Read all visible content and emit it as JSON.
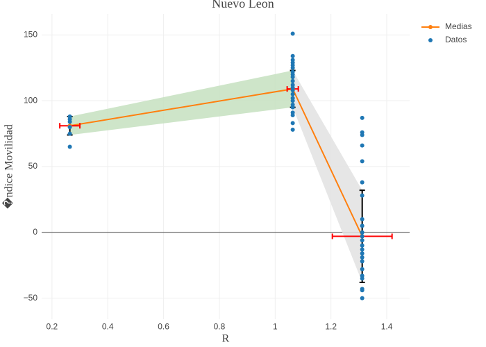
{
  "chart_data": {
    "type": "line",
    "title": "Nuevo Leon",
    "x_label": "R",
    "y_label": "�ndice Movilidad",
    "xlim": [
      0.163,
      1.482
    ],
    "ylim": [
      -66,
      166
    ],
    "xticks": [
      0.2,
      0.4,
      0.6,
      0.8,
      1,
      1.2,
      1.4
    ],
    "yticks": [
      {
        "value": -50,
        "label": "−50"
      },
      0,
      50,
      100,
      150
    ],
    "grid": true,
    "zeroline": true,
    "legend": "top-right",
    "bands": [
      {
        "color": "#c5e0c0",
        "x": [
          0.264,
          1.063
        ],
        "lower": [
          74,
          95
        ],
        "upper": [
          88,
          123
        ]
      },
      {
        "color": "#e2e2e2",
        "x": [
          1.063,
          1.312
        ],
        "lower": [
          95,
          -38
        ],
        "upper": [
          123,
          32
        ]
      }
    ],
    "series": [
      {
        "name": "Medias",
        "color": "#ff7f0e",
        "x": [
          0.264,
          1.063,
          1.312
        ],
        "values": [
          81,
          109,
          -3
        ],
        "y_error": [
          7,
          14,
          35
        ],
        "x_error": [
          0.036,
          0.02,
          0.107
        ],
        "y_error_color": "#000000",
        "x_error_color": "#ff0000"
      },
      {
        "name": "Datos",
        "color": "#1f77b4",
        "mode": "markers",
        "x": [
          0.264,
          0.264,
          0.264,
          0.264,
          0.264,
          0.264,
          1.063,
          1.063,
          1.063,
          1.063,
          1.063,
          1.063,
          1.063,
          1.063,
          1.063,
          1.063,
          1.063,
          1.063,
          1.063,
          1.063,
          1.063,
          1.063,
          1.063,
          1.063,
          1.063,
          1.063,
          1.063,
          1.063,
          1.312,
          1.312,
          1.312,
          1.312,
          1.312,
          1.312,
          1.312,
          1.312,
          1.312,
          1.312,
          1.312,
          1.312,
          1.312,
          1.312,
          1.312,
          1.312,
          1.312,
          1.312,
          1.312,
          1.312,
          1.312,
          1.312,
          1.312
        ],
        "values": [
          65,
          75,
          80,
          84,
          86,
          88,
          151,
          134,
          131,
          129,
          127,
          125,
          122,
          120,
          118,
          115,
          112,
          110,
          108,
          105,
          102,
          100,
          97,
          95,
          91,
          89,
          83,
          78,
          87,
          76,
          74,
          66,
          54,
          38,
          28,
          10,
          5,
          0,
          -6,
          -10,
          -13,
          -16,
          -19,
          -22,
          -28,
          -33,
          -35,
          -43,
          -44,
          -50,
          -3
        ]
      }
    ]
  }
}
